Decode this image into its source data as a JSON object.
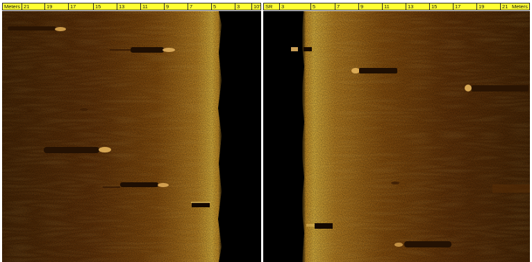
{
  "left_channel": {
    "unit_label": "Meters",
    "scale_labels": [
      "21",
      "19",
      "17",
      "15",
      "13",
      "11",
      "9",
      "7",
      "5",
      "3",
      "10'"
    ]
  },
  "right_channel": {
    "unit_label": "Meters",
    "scale_labels": [
      "SR",
      "3",
      "5",
      "7",
      "9",
      "11",
      "13",
      "15",
      "17",
      "19",
      "21"
    ]
  },
  "colors": {
    "ruler_background": "#ffff33",
    "sonar_dark": "#4a2504",
    "sonar_mid": "#9a5a10",
    "sonar_bright": "#f0c040",
    "water_column": "#000000"
  }
}
